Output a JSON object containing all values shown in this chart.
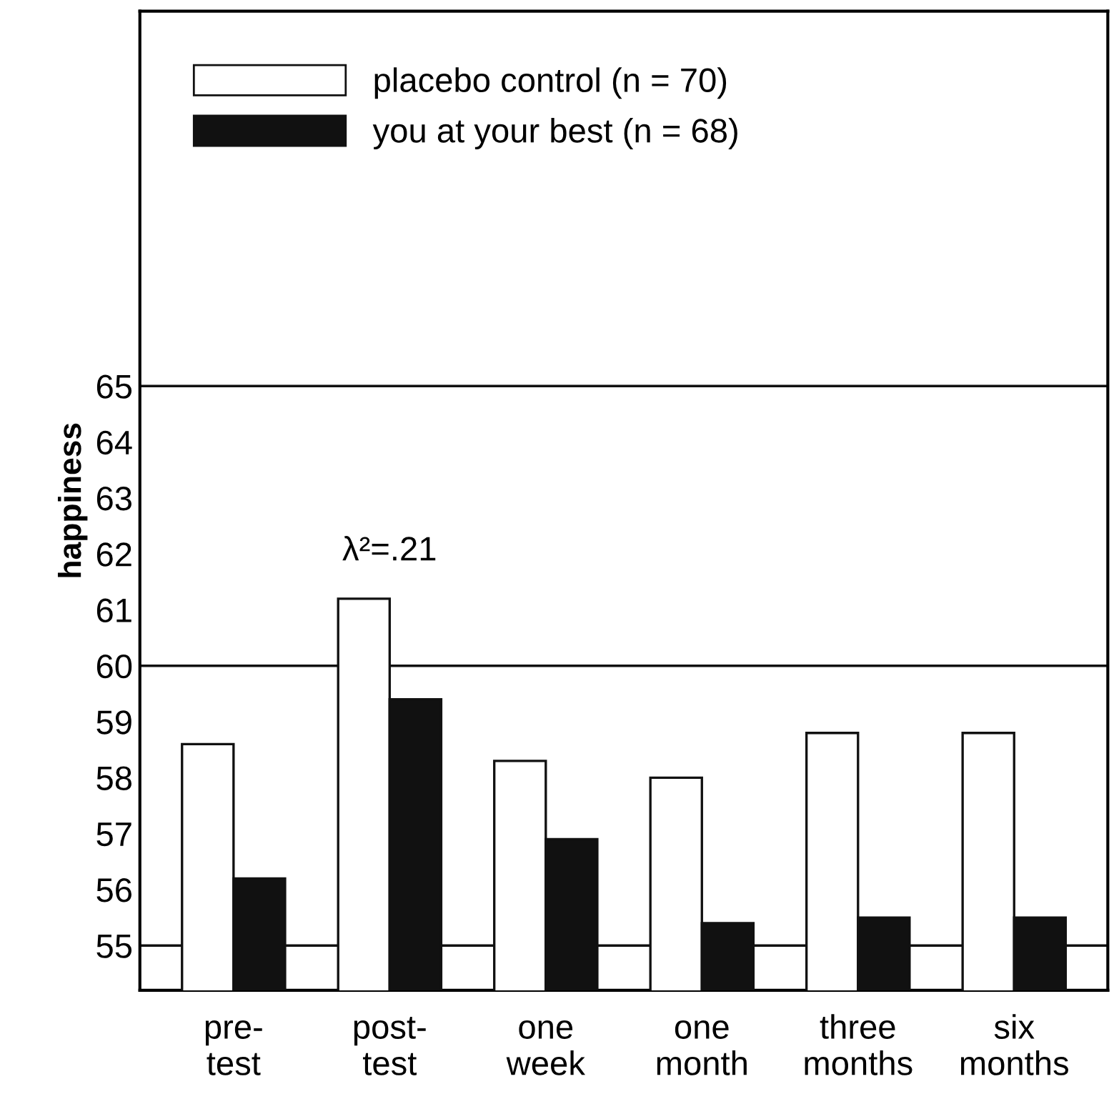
{
  "chart_data": {
    "type": "bar",
    "ylabel": "happiness",
    "categories": [
      "pre-\ntest",
      "post-\ntest",
      "one\nweek",
      "one\nmonth",
      "three\nmonths",
      "six\nmonths"
    ],
    "series": [
      {
        "name": "placebo control (n = 70)",
        "color": "#ffffff",
        "values": [
          58.6,
          61.2,
          58.3,
          58.0,
          58.8,
          58.8
        ]
      },
      {
        "name": "you at your best (n = 68)",
        "color": "#111111",
        "values": [
          56.2,
          59.4,
          56.9,
          55.4,
          55.5,
          55.5
        ]
      }
    ],
    "ylim": [
      54.2,
      71.7
    ],
    "yticks": [
      55,
      56,
      57,
      58,
      59,
      60,
      61,
      62,
      63,
      64,
      65
    ],
    "ref_lines": [
      {
        "axis": "y",
        "value": 55
      },
      {
        "axis": "y",
        "value": 60
      },
      {
        "axis": "y",
        "value": 65
      }
    ],
    "annotations": [
      "λ²=.21"
    ],
    "grid": false,
    "legend": "top left"
  }
}
